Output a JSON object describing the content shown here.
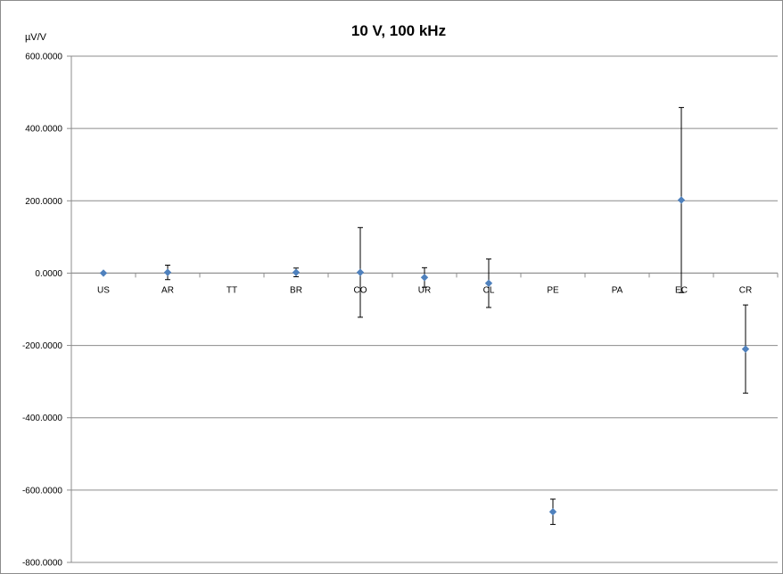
{
  "chart_data": {
    "type": "scatter",
    "title": "10 V, 100 kHz",
    "xlabel": "",
    "ylabel": "µV/V",
    "categories": [
      "US",
      "AR",
      "TT",
      "BR",
      "CO",
      "UR",
      "CL",
      "PE",
      "PA",
      "EC",
      "CR"
    ],
    "series": [
      {
        "values": [
          0,
          2,
          null,
          2,
          2,
          -12,
          -28,
          -660,
          null,
          202,
          -210
        ],
        "errors": [
          0,
          20,
          null,
          12,
          124,
          27,
          67,
          35,
          null,
          256,
          122
        ]
      }
    ],
    "ylim": [
      -800,
      600
    ],
    "yticks": [
      600,
      400,
      200,
      0,
      -200,
      -400,
      -600,
      -800
    ],
    "ytick_labels": [
      "600.0000",
      "400.0000",
      "200.0000",
      "0.0000",
      "-200.0000",
      "-400.0000",
      "-600.0000",
      "-800.0000"
    ],
    "grid": true,
    "legend": "none",
    "colors": {
      "marker": "#4f81bd",
      "gridline": "#8c8c8c",
      "errorbar": "#000000",
      "axis": "#8c8c8c"
    }
  }
}
